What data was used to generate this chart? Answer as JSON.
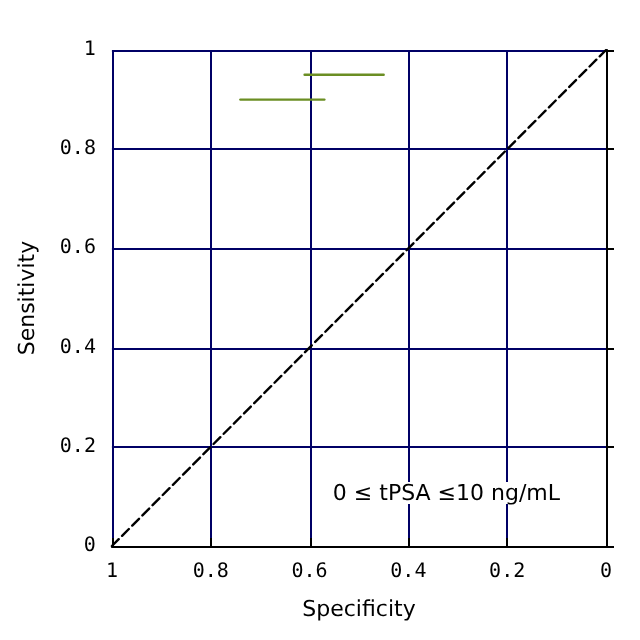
{
  "chart_data": {
    "type": "line",
    "xlabel": "Specificity",
    "ylabel": "Sensitivity",
    "xlim": [
      1,
      0
    ],
    "ylim": [
      0,
      1
    ],
    "xticks": [
      1,
      0.8,
      0.6,
      0.4,
      0.2,
      0
    ],
    "yticks": [
      0,
      0.2,
      0.4,
      0.6,
      0.8,
      1
    ],
    "grid": true,
    "marker": "none",
    "annotations": [
      "0 ≤ tPSA ≤10 ng/mL"
    ],
    "series": [
      {
        "color": "#6b8e23",
        "x": [
          0.61,
          0.45
        ],
        "values": [
          0.95,
          0.95
        ]
      },
      {
        "color": "#6b8e23",
        "x": [
          0.74,
          0.57
        ],
        "values": [
          0.9,
          0.9
        ]
      },
      {
        "color": "#000000",
        "x": [
          1,
          0
        ],
        "values": [
          0,
          1
        ],
        "line_style": "dashed"
      }
    ]
  }
}
